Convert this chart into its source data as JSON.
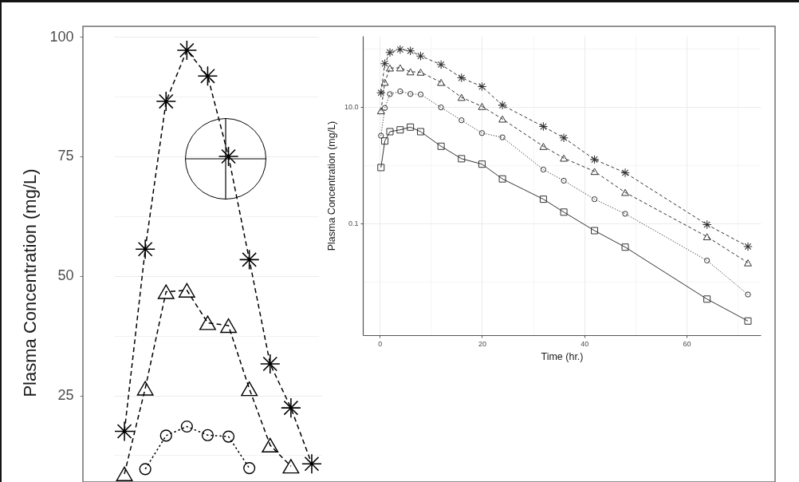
{
  "chart_data": [
    {
      "type": "line",
      "ylabel": "Plasma Concentration (mg/L)",
      "categories": [
        null,
        null,
        null,
        null,
        null,
        null,
        null,
        null,
        null,
        null
      ],
      "ylim": [
        6.9,
        102.2
      ],
      "yticks": [
        {
          "value": 12.5,
          "label": null
        },
        25,
        {
          "value": 37.5,
          "label": null
        },
        50,
        {
          "value": 62.5,
          "label": null
        },
        75,
        {
          "value": 87.5,
          "label": null
        },
        100
      ],
      "grid": "y",
      "series": [
        {
          "color": "#000000",
          "marker": "cross",
          "line_style": "dashed",
          "values": [
            17.5,
            55.6,
            86.5,
            97.2,
            91.8,
            75,
            53.4,
            31.6,
            22.4,
            10.7
          ]
        },
        {
          "color": "#000000",
          "marker": "triangle",
          "line_style": "dashed",
          "values": [
            8.6,
            26.5,
            46.7,
            47,
            40.2,
            39.6,
            26.4,
            14.6,
            10.2,
            null
          ]
        },
        {
          "color": "#000000",
          "marker": "circle",
          "line_style": "dotted",
          "values": [
            null,
            9.6,
            16.6,
            18.5,
            16.7,
            16.4,
            9.8,
            null,
            null,
            null
          ]
        }
      ]
    },
    {
      "type": "line",
      "xlabel": "Time (hr.)",
      "ylabel": "Plasma Concentration (mg/L)",
      "x": [
        0.25,
        1,
        2,
        4,
        6,
        8,
        12,
        16,
        20,
        24,
        32,
        36,
        42,
        48,
        64,
        72
      ],
      "xlim": [
        -3.3,
        74.5
      ],
      "xticks": [
        0,
        {
          "value": 10,
          "label": null
        },
        20,
        {
          "value": 30,
          "label": null
        },
        40,
        {
          "value": 50,
          "label": null
        },
        60,
        {
          "value": 70,
          "label": null
        }
      ],
      "ylim": [
        0.0012,
        166
      ],
      "yticks": [
        {
          "value": 0.01,
          "label": null
        },
        0.1,
        {
          "value": 1,
          "label": null
        },
        {
          "value": 10,
          "label": "10.0"
        },
        {
          "value": 100,
          "label": null
        }
      ],
      "log": "y",
      "grid": true,
      "series": [
        {
          "color": "#333333",
          "marker": "cross",
          "line_style": "dashed",
          "values": [
            17.5,
            55.6,
            86.5,
            97.2,
            91.8,
            75,
            53.4,
            31.6,
            22.4,
            10.7,
            4.6,
            2.95,
            1.25,
            0.74,
            0.095,
            0.04
          ]
        },
        {
          "color": "#333333",
          "marker": "triangle",
          "line_style": "dashed",
          "values": [
            8.6,
            26.5,
            46.7,
            47,
            40.2,
            39.6,
            26.4,
            14.6,
            10.2,
            6.2,
            2.1,
            1.32,
            0.78,
            0.34,
            0.059,
            0.021
          ]
        },
        {
          "color": "#333333",
          "marker": "circle",
          "line_style": "dotted",
          "values": [
            3.2,
            9.6,
            16.6,
            18.5,
            16.7,
            16.4,
            9.8,
            5.9,
            3.56,
            3.0,
            0.84,
            0.54,
            0.26,
            0.146,
            0.023,
            0.006
          ]
        },
        {
          "color": "#333333",
          "marker": "square",
          "line_style": "solid",
          "values": [
            0.91,
            2.6,
            3.76,
            4.04,
            4.5,
            3.76,
            2.11,
            1.29,
            1.04,
            0.58,
            0.26,
            0.156,
            0.075,
            0.039,
            0.005,
            0.0021
          ]
        }
      ]
    }
  ]
}
